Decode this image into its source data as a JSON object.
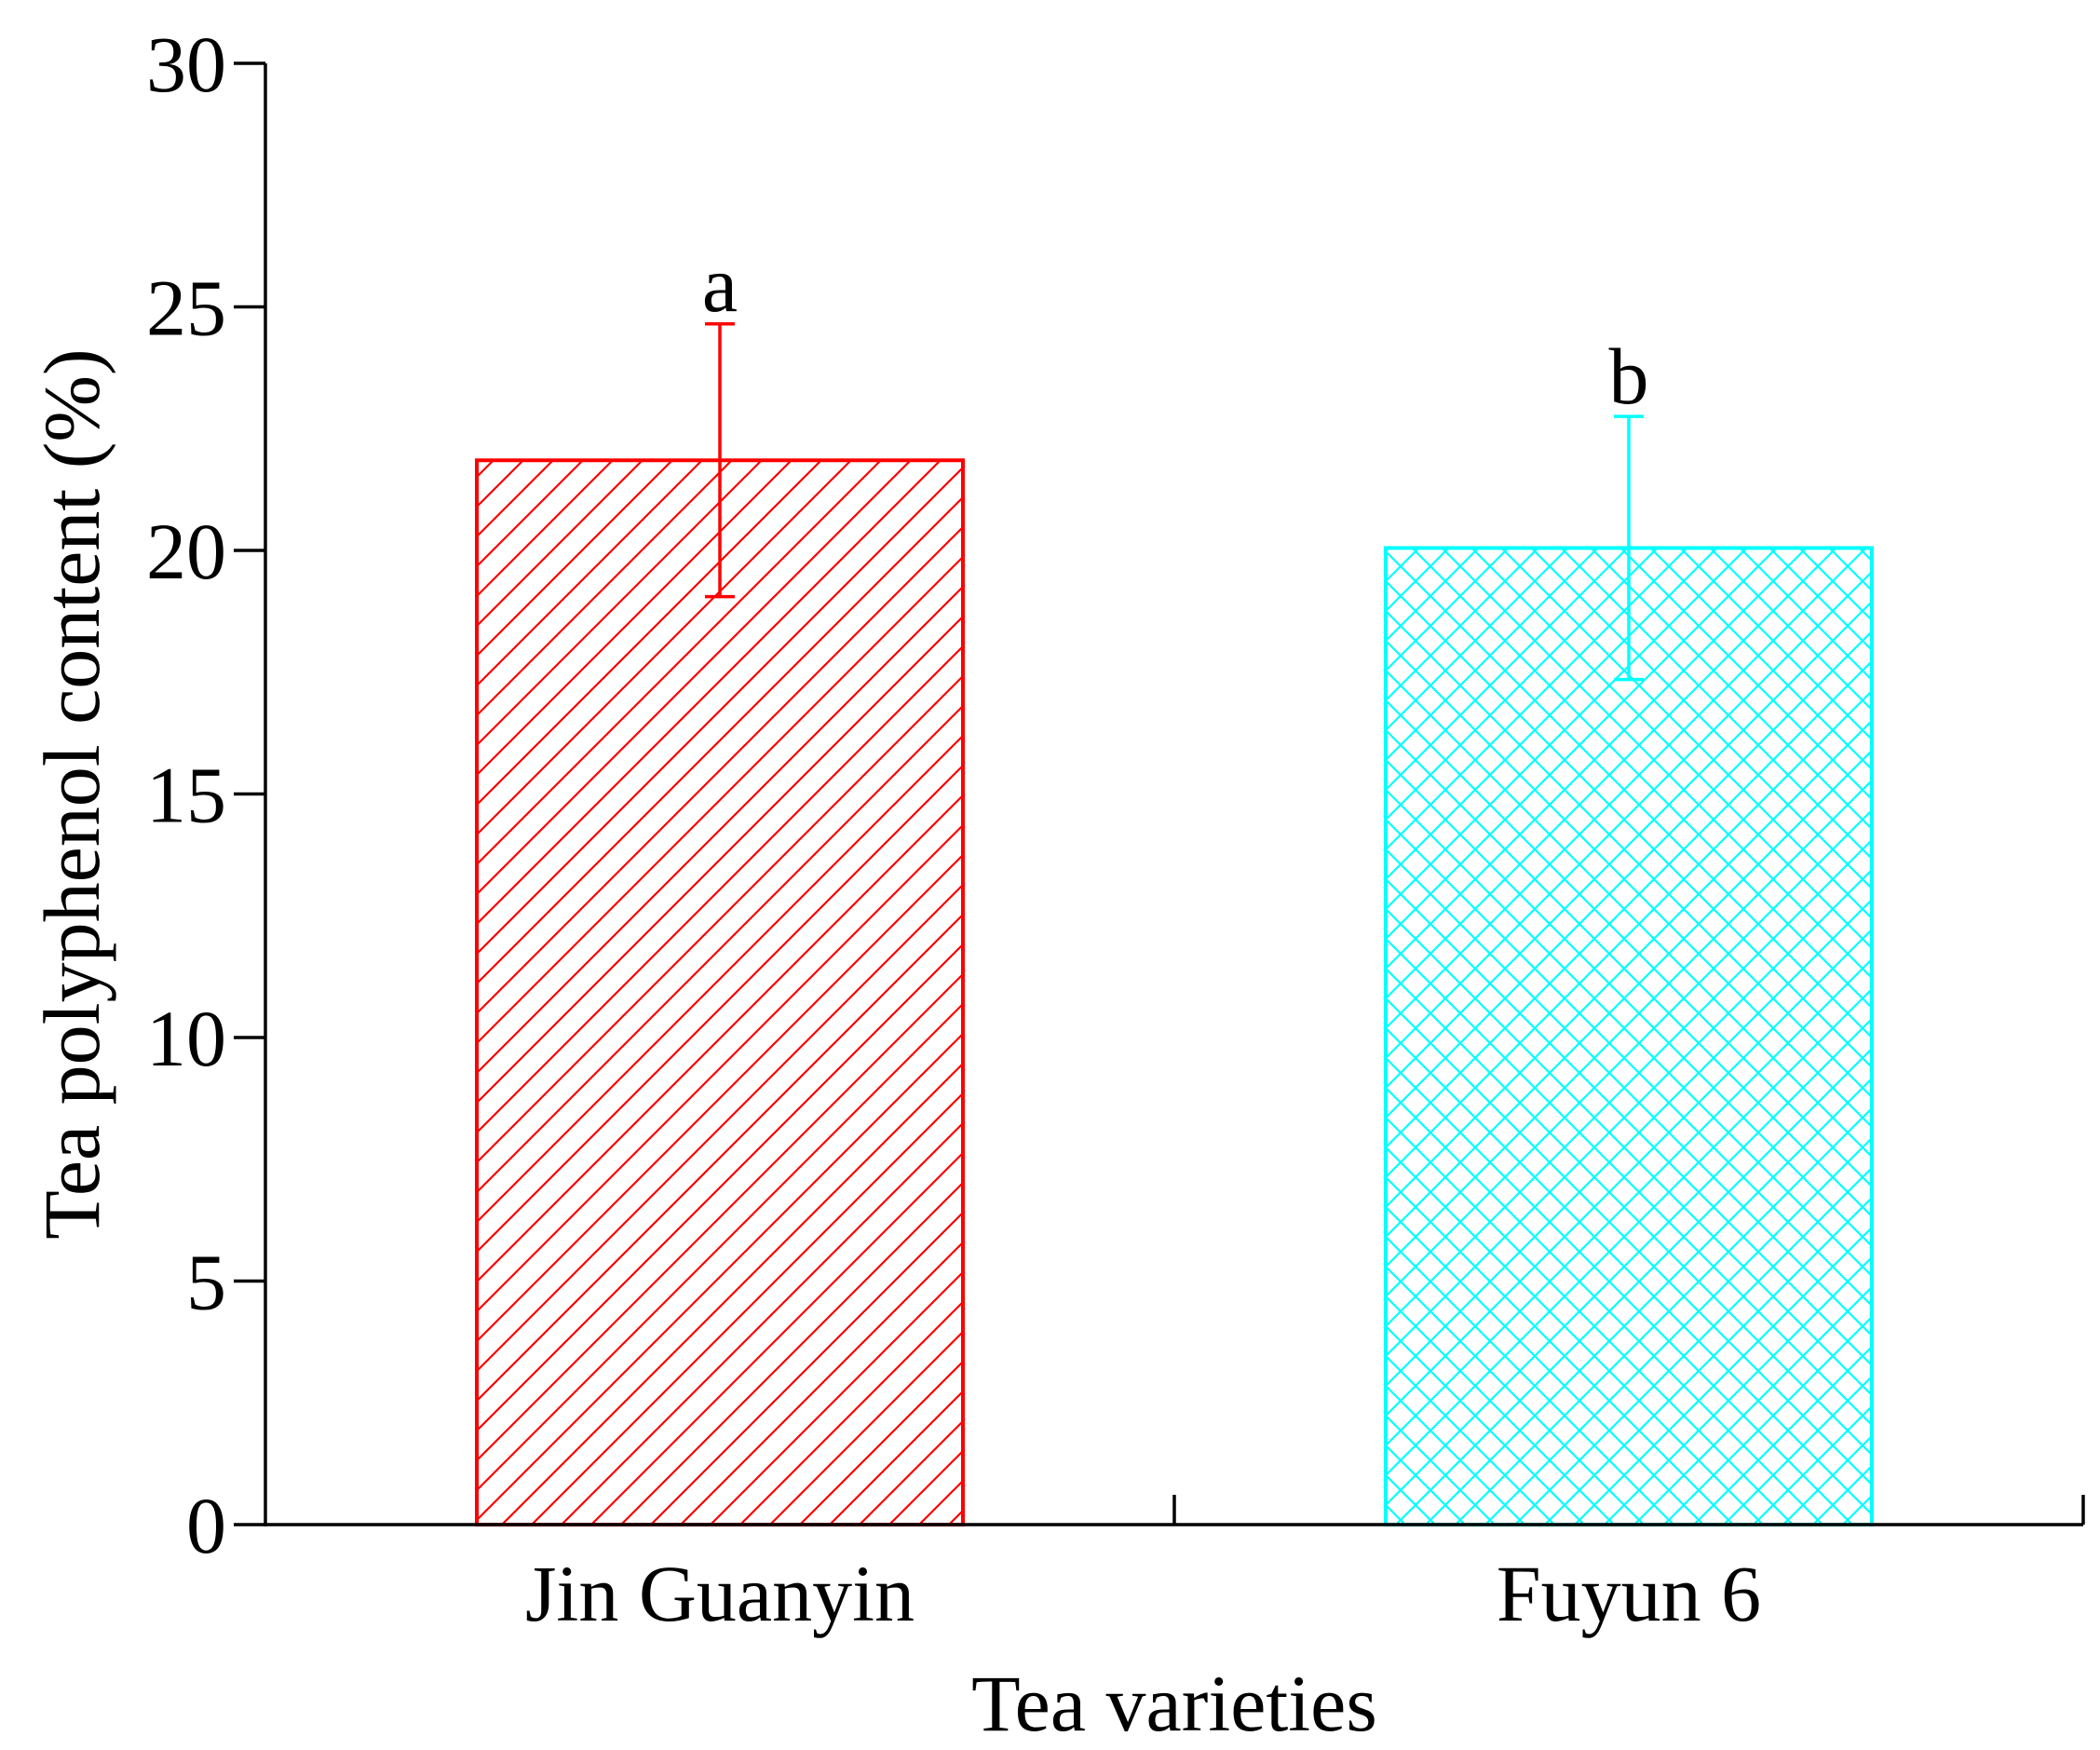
{
  "chart_data": {
    "type": "bar",
    "title": "",
    "xlabel": "Tea varieties",
    "ylabel": "Tea polyphenol content (%)",
    "ylim": [
      0,
      30
    ],
    "yticks": [
      0,
      5,
      10,
      15,
      20,
      25,
      30
    ],
    "grid": false,
    "legend": "none",
    "categories": [
      "Jin Guanyin",
      "Fuyun 6"
    ],
    "values": [
      21.85,
      20.05
    ],
    "errors": [
      2.8,
      2.7
    ],
    "significance_labels": [
      "a",
      "b"
    ],
    "colors": [
      "#ff0000",
      "#00ffff"
    ],
    "patterns": [
      "diagonal-hatch",
      "crosshatch"
    ]
  }
}
